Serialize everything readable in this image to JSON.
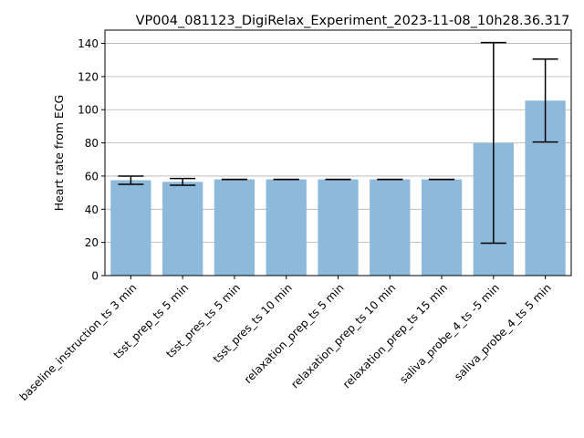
{
  "chart_data": {
    "type": "bar",
    "title": "VP004_081123_DigiRelax_Experiment_2023-11-08_10h28.36.317",
    "xlabel": "",
    "ylabel": "Heart rate from ECG",
    "ylim": [
      0,
      148
    ],
    "yticks": [
      0,
      20,
      40,
      60,
      80,
      100,
      120,
      140
    ],
    "grid": "horizontal",
    "bar_color": "#8db9db",
    "categories": [
      "baseline_instruction_ts 3 min",
      "tsst_prep_ts 5 min",
      "tsst_pres_ts 5 min",
      "tsst_pres_ts 10 min",
      "relaxation_prep_ts 5 min",
      "relaxation_prep_ts 10 min",
      "relaxation_prep_ts 15 min",
      "saliva_probe_4_ts -5 min",
      "saliva_probe_4_ts 5 min"
    ],
    "values": [
      57.5,
      56.5,
      58,
      58,
      58,
      58,
      58,
      80,
      105.5
    ],
    "errors": [
      2.5,
      2,
      0,
      0,
      0,
      0,
      0,
      60.5,
      25
    ]
  }
}
